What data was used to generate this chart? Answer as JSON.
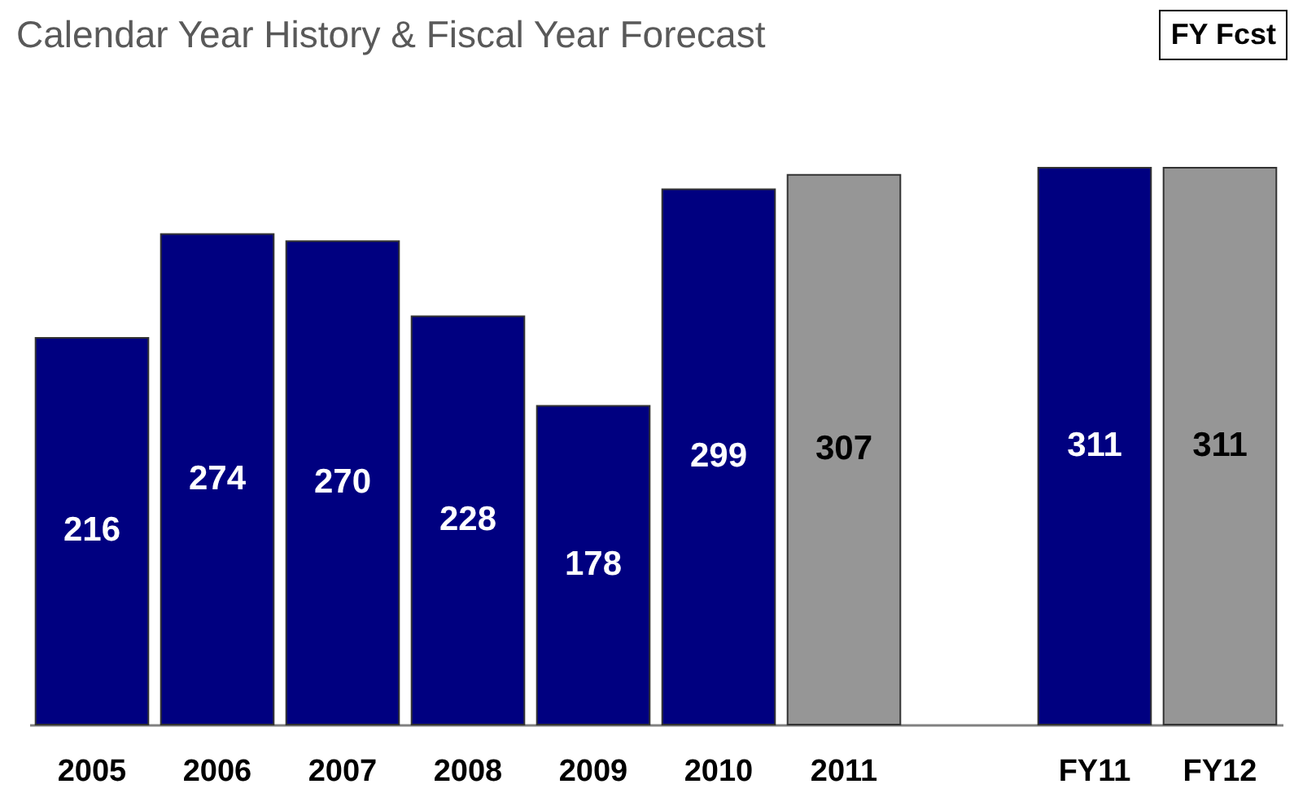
{
  "chart_data": {
    "type": "bar",
    "title": "Calendar Year History & Fiscal Year Forecast",
    "categories": [
      "2005",
      "2006",
      "2007",
      "2008",
      "2009",
      "2010",
      "2011",
      null,
      "FY11",
      "FY12"
    ],
    "values": [
      216,
      274,
      270,
      228,
      178,
      299,
      307,
      null,
      311,
      311
    ],
    "colors": [
      "#000080",
      "#000080",
      "#000080",
      "#000080",
      "#000080",
      "#000080",
      "#969696",
      null,
      "#000080",
      "#969696"
    ],
    "data_labels": true,
    "annotations": [
      "FY Fcst"
    ]
  }
}
